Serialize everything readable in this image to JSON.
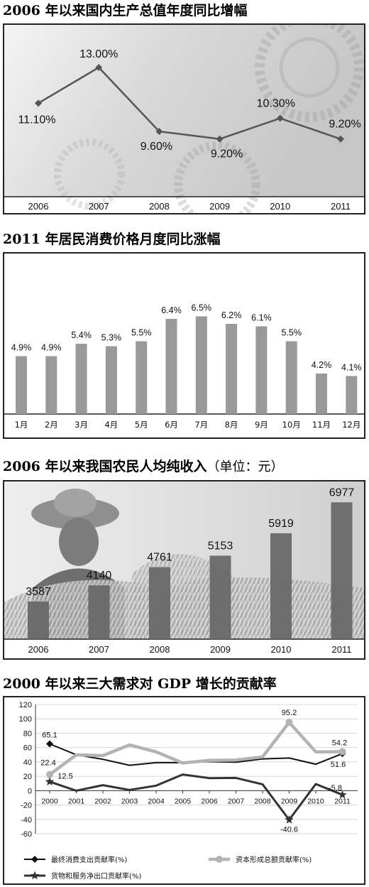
{
  "chart_data": [
    {
      "type": "line",
      "title": "2006 年以来国内生产总值年度同比增幅",
      "categories": [
        "2006",
        "2007",
        "2008",
        "2009",
        "2010",
        "2011"
      ],
      "series": [
        {
          "values": [
            11.1,
            13.0,
            9.6,
            9.2,
            10.3,
            9.2
          ]
        }
      ],
      "data_labels": [
        "11.10%",
        "13.00%",
        "9.60%",
        "9.20%",
        "10.30%",
        "9.20%"
      ],
      "colors": {
        "line": "#555555",
        "background": "#e2e2e2"
      }
    },
    {
      "type": "bar",
      "title": "2011 年居民消费价格月度同比涨幅",
      "categories": [
        "1月",
        "2月",
        "3月",
        "4月",
        "5月",
        "6月",
        "7月",
        "8月",
        "9月",
        "10月",
        "11月",
        "12月"
      ],
      "values": [
        4.9,
        4.9,
        5.4,
        5.3,
        5.5,
        6.4,
        6.5,
        6.2,
        6.1,
        5.5,
        4.2,
        4.1
      ],
      "data_labels": [
        "4.9%",
        "4.9%",
        "5.4%",
        "5.3%",
        "5.5%",
        "6.4%",
        "6.5%",
        "6.2%",
        "6.1%",
        "5.5%",
        "4.2%",
        "4.1%"
      ],
      "colors": {
        "bar": "#999999"
      }
    },
    {
      "type": "bar",
      "title": "2006 年以来我国农民人均纯收入",
      "title_unit": "（单位：元）",
      "categories": [
        "2006",
        "2007",
        "2008",
        "2009",
        "2010",
        "2011"
      ],
      "values": [
        3587,
        4140,
        4761,
        5153,
        5919,
        6977
      ],
      "data_labels": [
        "3587",
        "4140",
        "4761",
        "5153",
        "5919",
        "6977"
      ],
      "colors": {
        "bar": "#666666"
      }
    },
    {
      "type": "line",
      "title": "2000 年以来三大需求对 GDP 增长的贡献率",
      "categories": [
        "2000",
        "2001",
        "2002",
        "2003",
        "2004",
        "2005",
        "2006",
        "2007",
        "2008",
        "2009",
        "2010",
        "2011"
      ],
      "ylim": [
        -60,
        120
      ],
      "yticks": [
        "120",
        "100",
        "80",
        "60",
        "40",
        "20",
        "0",
        "-20",
        "-40",
        "-60"
      ],
      "grid": true,
      "legend_position": "bottom",
      "series": [
        {
          "name": "最终消费支出贡献率(%)",
          "values": [
            65.1,
            50,
            43.6,
            35.3,
            39,
            39,
            40.4,
            39.6,
            44.2,
            45.4,
            36.8,
            51.6
          ],
          "marker": "diamond",
          "color": "#111111"
        },
        {
          "name": "资本形成总额贡献率(%)",
          "values": [
            22.4,
            49.9,
            48.8,
            63.7,
            54,
            38.5,
            42.2,
            42.7,
            47,
            95.2,
            54,
            54.2
          ],
          "marker": "circle",
          "color": "#b3b3b3"
        },
        {
          "name": "货物和服务净出口贡献率(%)",
          "values": [
            12.5,
            -0.1,
            7.6,
            1,
            7,
            22.5,
            17.4,
            17.7,
            8.8,
            -40.6,
            9.2,
            -5.8
          ],
          "marker": "star",
          "color": "#333333"
        }
      ],
      "annotations": [
        "65.1",
        "22.4",
        "12.5",
        "95.2",
        "-40.6",
        "54.2",
        "51.6",
        "-5.8"
      ]
    }
  ]
}
